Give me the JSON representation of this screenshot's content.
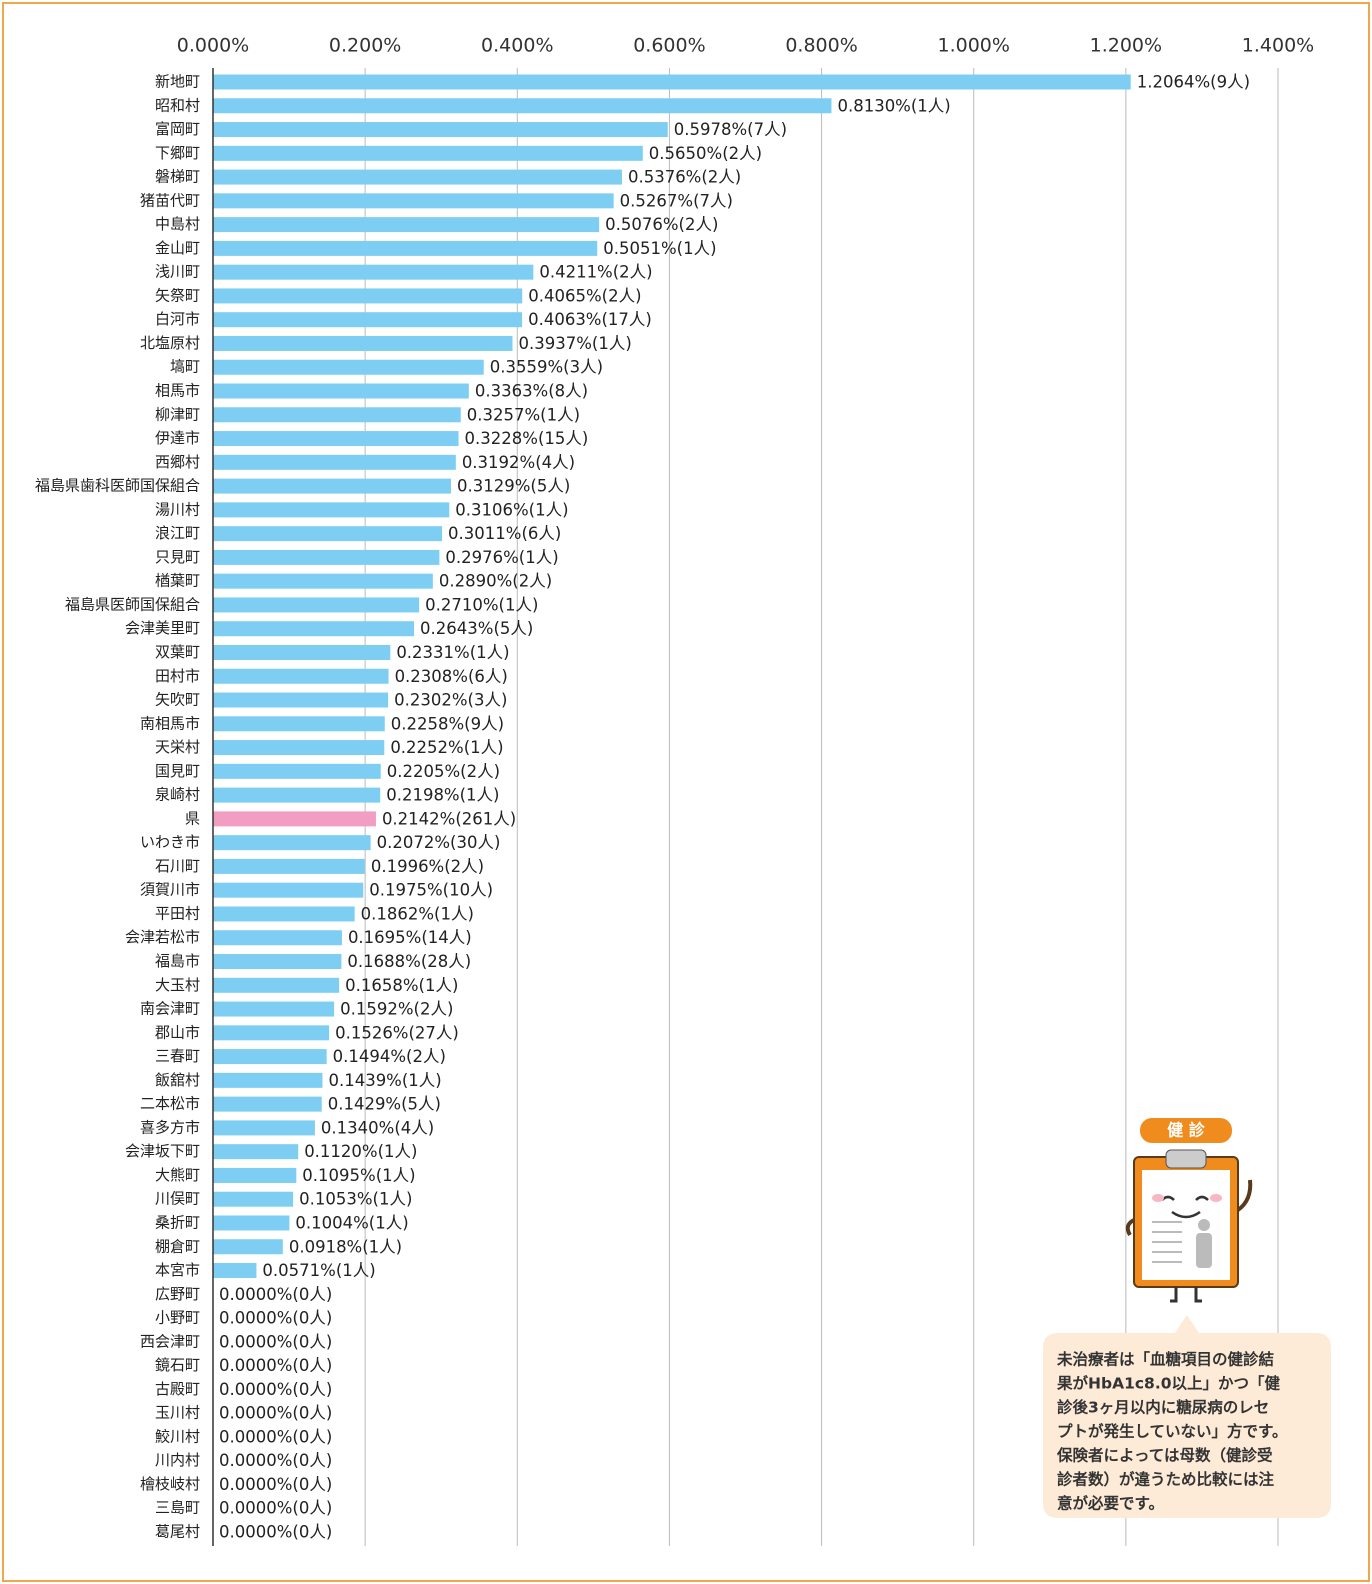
{
  "chart_data": {
    "type": "hbar",
    "categories": [
      "新地町",
      "昭和村",
      "富岡町",
      "下郷町",
      "磐梯町",
      "猪苗代町",
      "中島村",
      "金山町",
      "浅川町",
      "矢祭町",
      "白河市",
      "北塩原村",
      "塙町",
      "相馬市",
      "柳津町",
      "伊達市",
      "西郷村",
      "福島県歯科医師国保組合",
      "湯川村",
      "浪江町",
      "只見町",
      "楢葉町",
      "福島県医師国保組合",
      "会津美里町",
      "双葉町",
      "田村市",
      "矢吹町",
      "南相馬市",
      "天栄村",
      "国見町",
      "泉崎村",
      "県",
      "いわき市",
      "石川町",
      "須賀川市",
      "平田村",
      "会津若松市",
      "福島市",
      "大玉村",
      "南会津町",
      "郡山市",
      "三春町",
      "飯舘村",
      "二本松市",
      "喜多方市",
      "会津坂下町",
      "大熊町",
      "川俣町",
      "桑折町",
      "棚倉町",
      "本宮市",
      "広野町",
      "小野町",
      "西会津町",
      "鏡石町",
      "古殿町",
      "玉川村",
      "鮫川村",
      "川内村",
      "檜枝岐村",
      "三島町",
      "葛尾村"
    ],
    "values": [
      1.2064,
      0.813,
      0.5978,
      0.565,
      0.5376,
      0.5267,
      0.5076,
      0.5051,
      0.4211,
      0.4065,
      0.4063,
      0.3937,
      0.3559,
      0.3363,
      0.3257,
      0.3228,
      0.3192,
      0.3129,
      0.3106,
      0.3011,
      0.2976,
      0.289,
      0.271,
      0.2643,
      0.2331,
      0.2308,
      0.2302,
      0.2258,
      0.2252,
      0.2205,
      0.2198,
      0.2142,
      0.2072,
      0.1996,
      0.1975,
      0.1862,
      0.1695,
      0.1688,
      0.1658,
      0.1592,
      0.1526,
      0.1494,
      0.1439,
      0.1429,
      0.134,
      0.112,
      0.1095,
      0.1053,
      0.1004,
      0.0918,
      0.0571,
      0,
      0,
      0,
      0,
      0,
      0,
      0,
      0,
      0,
      0,
      0
    ],
    "value_labels": [
      "1.2064%(9人)",
      "0.8130%(1人)",
      "0.5978%(7人)",
      "0.5650%(2人)",
      "0.5376%(2人)",
      "0.5267%(7人)",
      "0.5076%(2人)",
      "0.5051%(1人)",
      "0.4211%(2人)",
      "0.4065%(2人)",
      "0.4063%(17人)",
      "0.3937%(1人)",
      "0.3559%(3人)",
      "0.3363%(8人)",
      "0.3257%(1人)",
      "0.3228%(15人)",
      "0.3192%(4人)",
      "0.3129%(5人)",
      "0.3106%(1人)",
      "0.3011%(6人)",
      "0.2976%(1人)",
      "0.2890%(2人)",
      "0.2710%(1人)",
      "0.2643%(5人)",
      "0.2331%(1人)",
      "0.2308%(6人)",
      "0.2302%(3人)",
      "0.2258%(9人)",
      "0.2252%(1人)",
      "0.2205%(2人)",
      "0.2198%(1人)",
      "0.2142%(261人)",
      "0.2072%(30人)",
      "0.1996%(2人)",
      "0.1975%(10人)",
      "0.1862%(1人)",
      "0.1695%(14人)",
      "0.1688%(28人)",
      "0.1658%(1人)",
      "0.1592%(2人)",
      "0.1526%(27人)",
      "0.1494%(2人)",
      "0.1439%(1人)",
      "0.1429%(5人)",
      "0.1340%(4人)",
      "0.1120%(1人)",
      "0.1095%(1人)",
      "0.1053%(1人)",
      "0.1004%(1人)",
      "0.0918%(1人)",
      "0.0571%(1人)",
      "0.0000%(0人)",
      "0.0000%(0人)",
      "0.0000%(0人)",
      "0.0000%(0人)",
      "0.0000%(0人)",
      "0.0000%(0人)",
      "0.0000%(0人)",
      "0.0000%(0人)",
      "0.0000%(0人)",
      "0.0000%(0人)",
      "0.0000%(0人)"
    ],
    "colors": [
      "#7ecef4",
      "#7ecef4",
      "#7ecef4",
      "#7ecef4",
      "#7ecef4",
      "#7ecef4",
      "#7ecef4",
      "#7ecef4",
      "#7ecef4",
      "#7ecef4",
      "#7ecef4",
      "#7ecef4",
      "#7ecef4",
      "#7ecef4",
      "#7ecef4",
      "#7ecef4",
      "#7ecef4",
      "#7ecef4",
      "#7ecef4",
      "#7ecef4",
      "#7ecef4",
      "#7ecef4",
      "#7ecef4",
      "#7ecef4",
      "#7ecef4",
      "#7ecef4",
      "#7ecef4",
      "#7ecef4",
      "#7ecef4",
      "#7ecef4",
      "#7ecef4",
      "#f19ec2",
      "#7ecef4",
      "#7ecef4",
      "#7ecef4",
      "#7ecef4",
      "#7ecef4",
      "#7ecef4",
      "#7ecef4",
      "#7ecef4",
      "#7ecef4",
      "#7ecef4",
      "#7ecef4",
      "#7ecef4",
      "#7ecef4",
      "#7ecef4",
      "#7ecef4",
      "#7ecef4",
      "#7ecef4",
      "#7ecef4",
      "#7ecef4",
      "#7ecef4",
      "#7ecef4",
      "#7ecef4",
      "#7ecef4",
      "#7ecef4",
      "#7ecef4",
      "#7ecef4",
      "#7ecef4",
      "#7ecef4",
      "#7ecef4",
      "#7ecef4"
    ],
    "xlim": [
      0,
      1.4
    ],
    "xticks": [
      {
        "value": 0,
        "label": "0.000%"
      },
      {
        "value": 0.2,
        "label": "0.200%"
      },
      {
        "value": 0.4,
        "label": "0.400%"
      },
      {
        "value": 0.6,
        "label": "0.600%"
      },
      {
        "value": 0.8,
        "label": "0.800%"
      },
      {
        "value": 1.0,
        "label": "1.000%"
      },
      {
        "value": 1.2,
        "label": "1.200%"
      },
      {
        "value": 1.4,
        "label": "1.400%"
      }
    ],
    "grid": true,
    "badge": "健 診",
    "note_lines": [
      "未治療者は「血糖項目の健診結",
      "果がHbA1c8.0以上」かつ「健",
      "診後3ヶ月以内に糖尿病のレセ",
      "プトが発生していない」方です。",
      "保険者によっては母数（健診受",
      "診者数）が違うため比較には注",
      "意が必要です。"
    ]
  }
}
